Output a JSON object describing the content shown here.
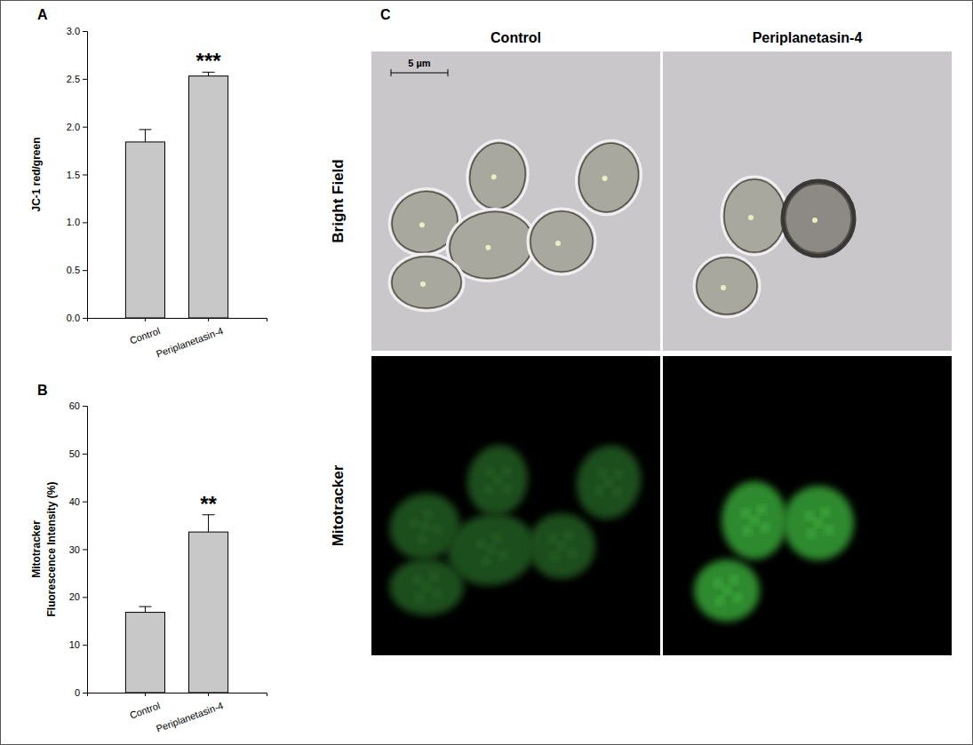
{
  "chart_data": [
    {
      "type": "bar",
      "panel_label": "A",
      "y_label": [
        "JC-1 red/green"
      ],
      "categories": [
        "Control",
        "Periplanetasin-4"
      ],
      "values": [
        1.84,
        2.53
      ],
      "error": [
        0.13,
        0.04
      ],
      "color": "#c8c8c8",
      "annotations": [
        {
          "category": "Periplanetasin-4",
          "text": "***"
        }
      ],
      "ylim": [
        0,
        3.0
      ],
      "yticks": [
        {
          "value": 0,
          "label": "0.0"
        },
        {
          "value": 0.5,
          "label": "0.5"
        },
        {
          "value": 1,
          "label": "1.0"
        },
        {
          "value": 1.5,
          "label": "1.5"
        },
        {
          "value": 2,
          "label": "2.0"
        },
        {
          "value": 2.5,
          "label": "2.5"
        },
        {
          "value": 3,
          "label": "3.0"
        }
      ],
      "grid": false
    },
    {
      "type": "bar",
      "panel_label": "B",
      "y_label": [
        "Mitotracker",
        "Fluorescence Intensity (%)"
      ],
      "categories": [
        "Control",
        "Periplanetasin-4"
      ],
      "values": [
        16.8,
        33.6
      ],
      "error": [
        1.2,
        3.6
      ],
      "color": "#c8c8c8",
      "annotations": [
        {
          "category": "Periplanetasin-4",
          "text": "**"
        }
      ],
      "ylim": [
        0,
        60
      ],
      "yticks": [
        0,
        10,
        20,
        30,
        40,
        50,
        60
      ],
      "grid": false
    }
  ],
  "panel_c": {
    "panel_label": "C",
    "columns": [
      "Control",
      "Periplanetasin-4"
    ],
    "rows": [
      "Bright Field",
      "Mitotracker"
    ],
    "scale_bar": "5 µm"
  }
}
